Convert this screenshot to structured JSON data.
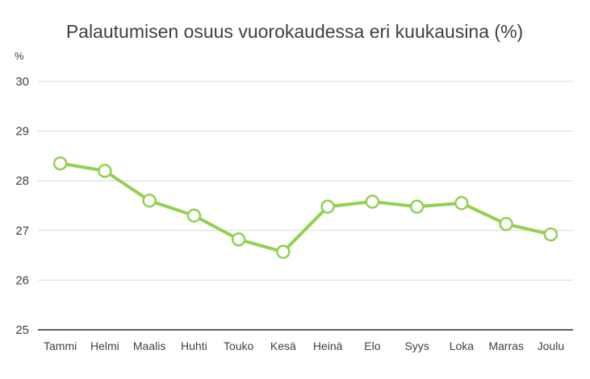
{
  "chart_data": {
    "type": "line",
    "title": "Palautumisen osuus vuorokaudessa eri kuukausina (%)",
    "ylabel": "%",
    "xlabel": "",
    "categories": [
      "Tammi",
      "Helmi",
      "Maalis",
      "Huhti",
      "Touko",
      "Kesä",
      "Heinä",
      "Elo",
      "Syys",
      "Loka",
      "Marras",
      "Joulu"
    ],
    "series": [
      {
        "values": [
          28.35,
          28.2,
          27.6,
          27.3,
          26.82,
          26.57,
          27.48,
          27.58,
          27.48,
          27.55,
          27.13,
          26.92
        ]
      }
    ],
    "ylim": [
      25,
      30
    ],
    "yticks": [
      25,
      26,
      27,
      28,
      29,
      30
    ],
    "grid": true,
    "legend": "none",
    "colors": {
      "line": "#92d050",
      "marker_fill": "#ffffff",
      "grid": "#d9d9d9",
      "axis": "#000000",
      "text": "#404040"
    }
  }
}
